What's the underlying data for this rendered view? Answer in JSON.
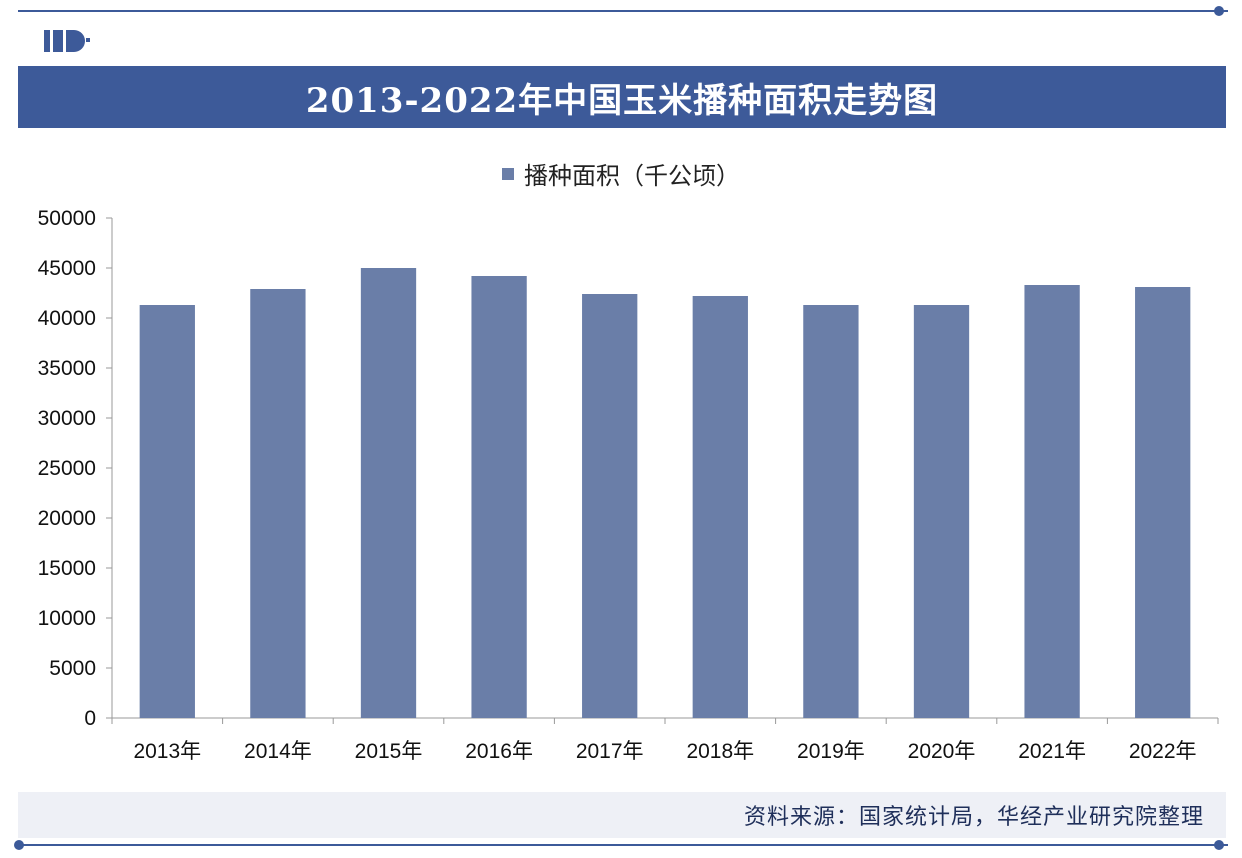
{
  "title": "2013-2022年中国玉米播种面积走势图",
  "source": "资料来源：国家统计局，华经产业研究院整理",
  "colors": {
    "accent": "#3d5a99",
    "bar": "#6a7ea8"
  },
  "icons": {
    "logo": "huajing-logo-icon"
  },
  "chart_data": {
    "type": "bar",
    "categories": [
      "2013年",
      "2014年",
      "2015年",
      "2016年",
      "2017年",
      "2018年",
      "2019年",
      "2020年",
      "2021年",
      "2022年"
    ],
    "series": [
      {
        "name": "播种面积（千公顷）",
        "values": [
          41300,
          42900,
          45000,
          44200,
          42400,
          42200,
          41300,
          41300,
          43300,
          43100
        ]
      }
    ],
    "ylim": [
      0,
      50000
    ],
    "yticks": [
      0,
      5000,
      10000,
      15000,
      20000,
      25000,
      30000,
      35000,
      40000,
      45000,
      50000
    ],
    "legend": "top-center",
    "grid": false
  }
}
